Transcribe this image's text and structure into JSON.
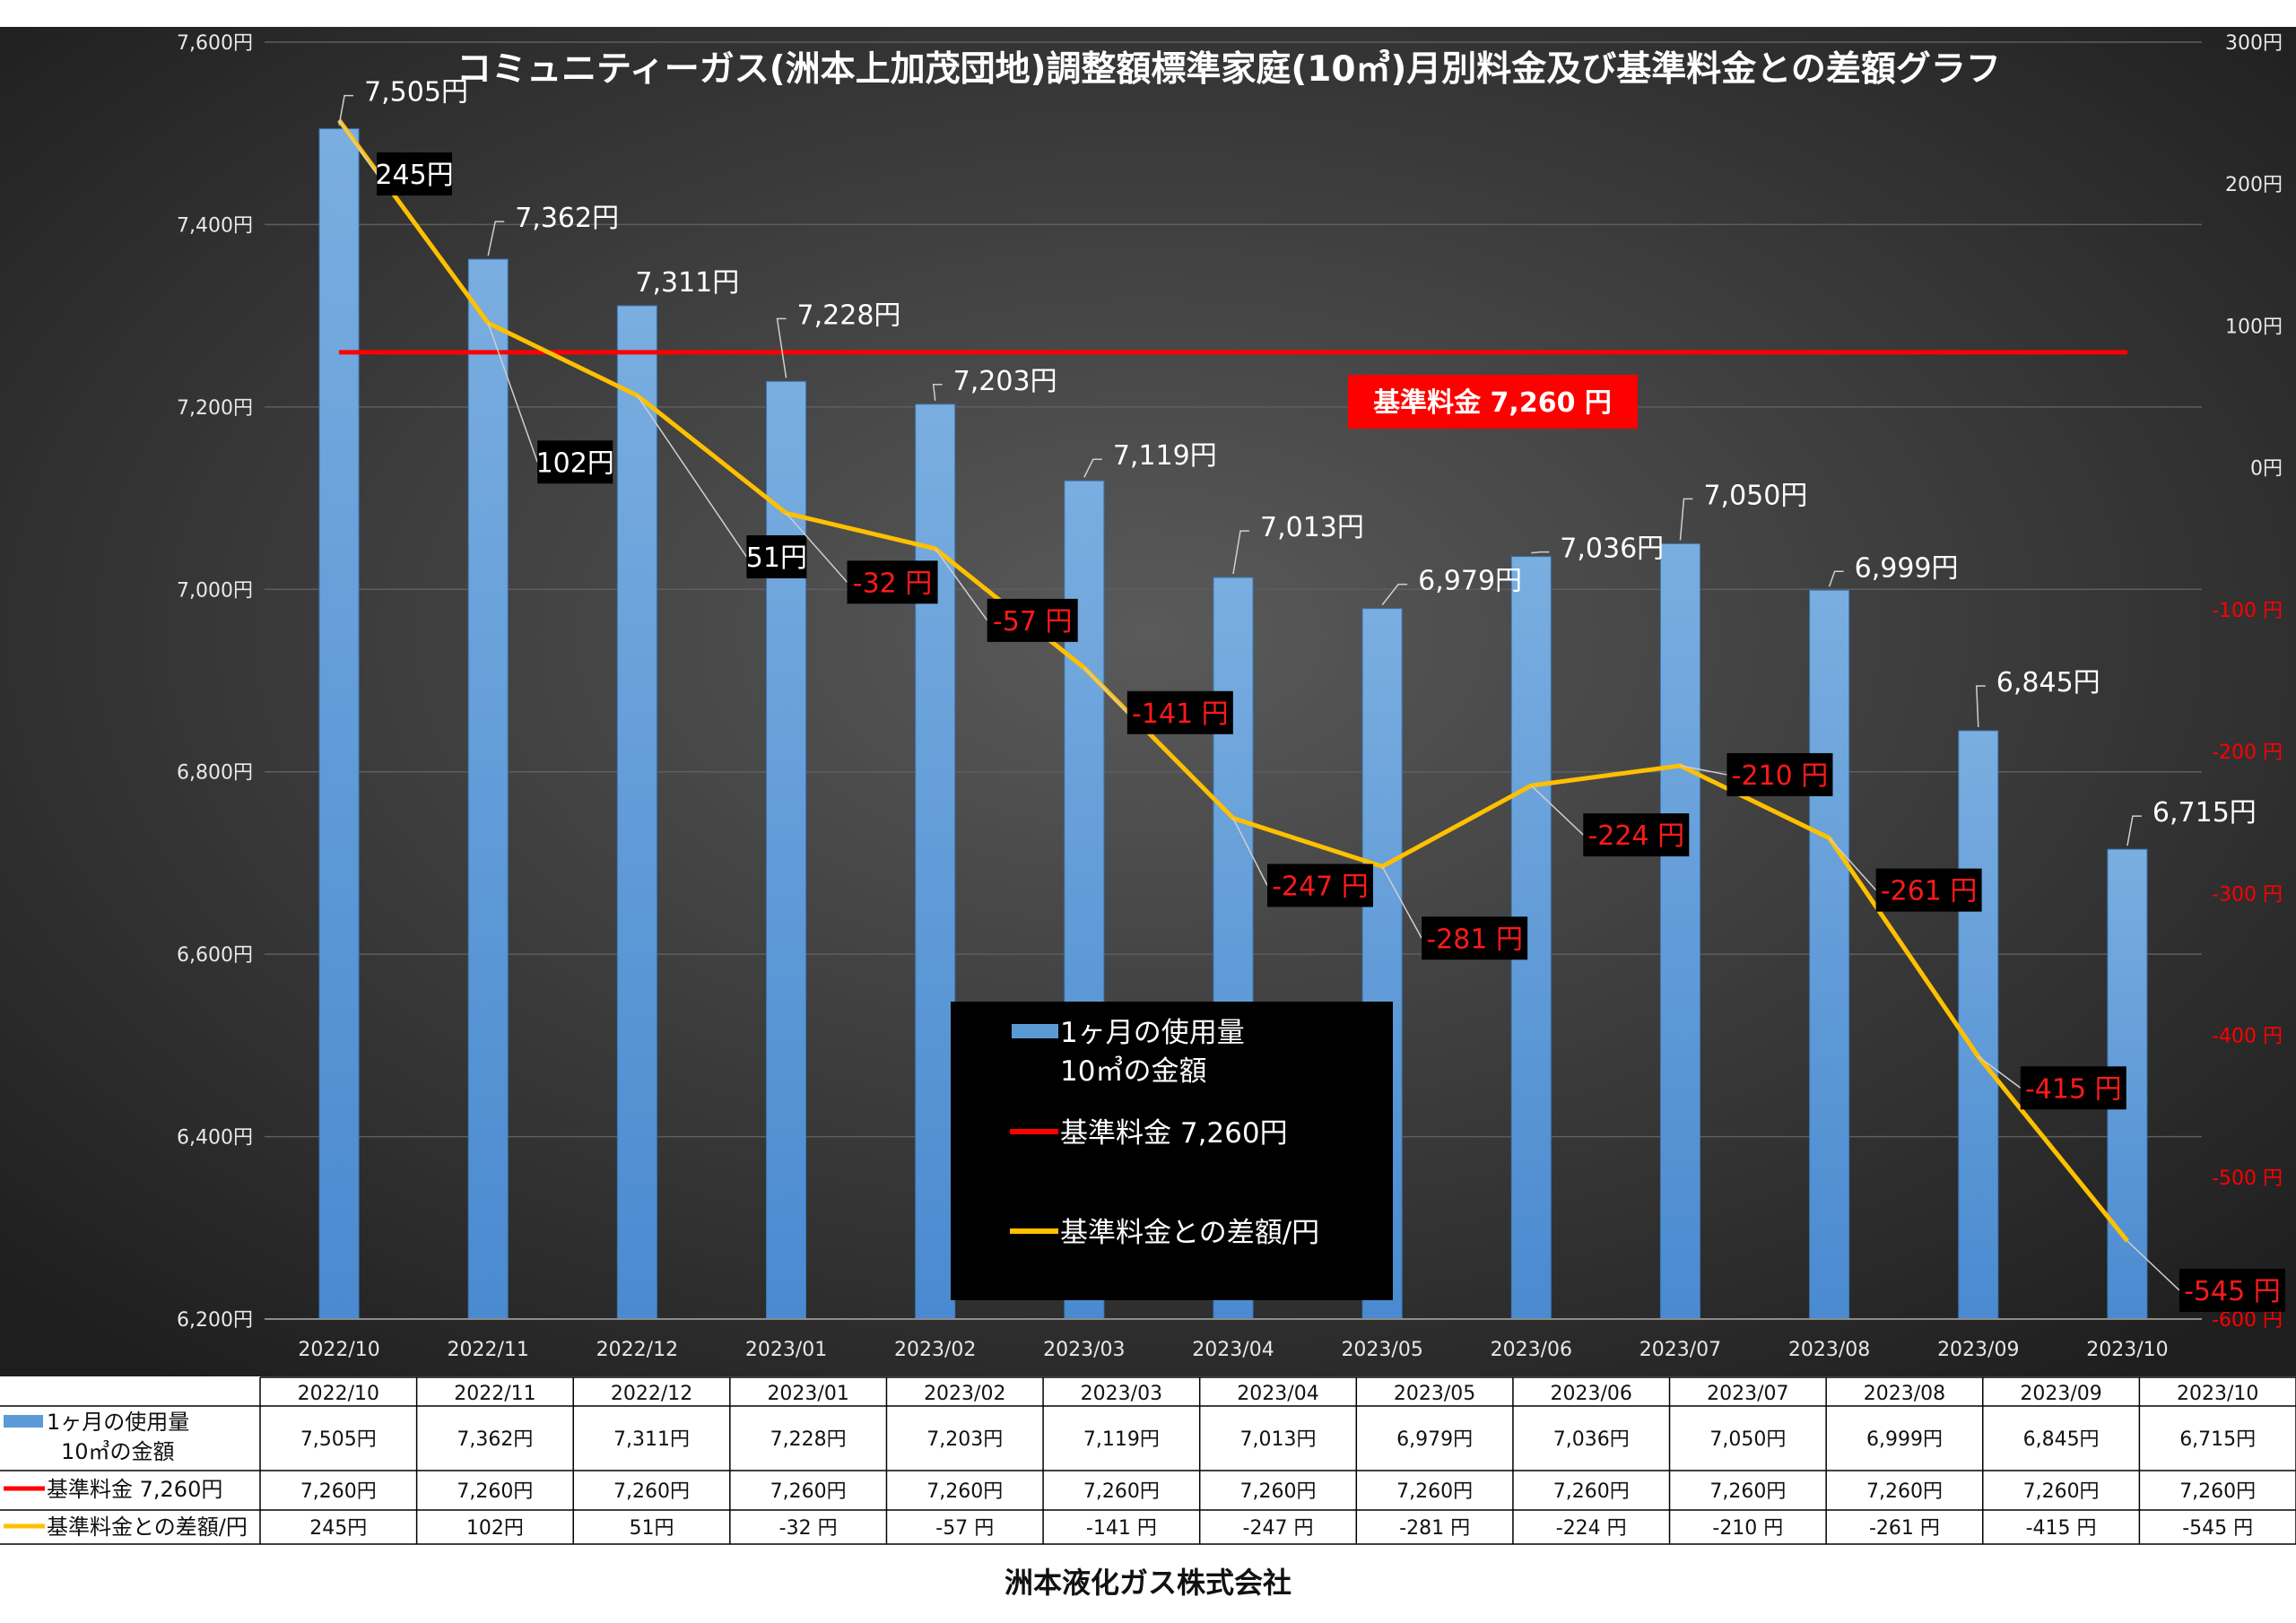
{
  "footer": "洲本液化ガス株式会社",
  "chart_data": {
    "type": "bar",
    "title": "コミュニティーガス(洲本上加茂団地)調整額標準家庭(10㎥)月別料金及び基準料金との差額グラフ",
    "categories": [
      "2022/10",
      "2022/11",
      "2022/12",
      "2023/01",
      "2023/02",
      "2023/03",
      "2023/04",
      "2023/05",
      "2023/06",
      "2023/07",
      "2023/08",
      "2023/09",
      "2023/10"
    ],
    "series": [
      {
        "name": "1ヶ月の使用量 10㎥の金額",
        "chart": "bar",
        "axis": "left",
        "color": "#5b9bd5",
        "values": [
          7505,
          7362,
          7311,
          7228,
          7203,
          7119,
          7013,
          6979,
          7036,
          7050,
          6999,
          6845,
          6715
        ],
        "labels": [
          "7,505円",
          "7,362円",
          "7,311円",
          "7,228円",
          "7,203円",
          "7,119円",
          "7,013円",
          "6,979円",
          "7,036円",
          "7,050円",
          "6,999円",
          "6,845円",
          "6,715円"
        ]
      },
      {
        "name": "基準料金 7,260円",
        "chart": "line",
        "axis": "left",
        "color": "#ff0000",
        "values": [
          7260,
          7260,
          7260,
          7260,
          7260,
          7260,
          7260,
          7260,
          7260,
          7260,
          7260,
          7260,
          7260
        ],
        "labels": [
          "7,260円",
          "7,260円",
          "7,260円",
          "7,260円",
          "7,260円",
          "7,260円",
          "7,260円",
          "7,260円",
          "7,260円",
          "7,260円",
          "7,260円",
          "7,260円",
          "7,260円"
        ]
      },
      {
        "name": "基準料金との差額/円",
        "chart": "line",
        "axis": "right",
        "color": "#ffc000",
        "values": [
          245,
          102,
          51,
          -32,
          -57,
          -141,
          -247,
          -281,
          -224,
          -210,
          -261,
          -415,
          -545
        ],
        "labels": [
          "245円",
          "102円",
          "51円",
          "-32 円",
          "-57 円",
          "-141 円",
          "-247 円",
          "-281 円",
          "-224 円",
          "-210 円",
          "-261 円",
          "-415 円",
          "-545 円"
        ]
      }
    ],
    "y_left": {
      "range": [
        6200,
        7600
      ],
      "ticks": [
        6200,
        6400,
        6600,
        6800,
        7000,
        7200,
        7400,
        7600
      ],
      "tick_labels": [
        "6,200円",
        "6,400円",
        "6,600円",
        "6,800円",
        "7,000円",
        "7,200円",
        "7,400円",
        "7,600円"
      ]
    },
    "y_right": {
      "range": [
        -600,
        300
      ],
      "ticks": [
        -600,
        -500,
        -400,
        -300,
        -200,
        -100,
        0,
        100,
        200,
        300
      ],
      "tick_labels": [
        "-600 円",
        "-500 円",
        "-400 円",
        "-300 円",
        "-200 円",
        "-100 円",
        "0円",
        "100円",
        "200円",
        "300円"
      ],
      "negative_color": "#ff0000"
    },
    "reference_label": "基準料金  7,260  円",
    "legend": {
      "placement": "center-bottom",
      "entries": [
        {
          "line1": "1ヶ月の使用量",
          "line2": "10㎥の金額",
          "color": "#5b9bd5"
        },
        {
          "line1": "基準料金   7,260円",
          "line2": "",
          "color": "#ff0000"
        },
        {
          "line1": "基準料金との差額/円",
          "line2": "",
          "color": "#ffc000"
        }
      ]
    },
    "table_row_labels": [
      {
        "line1": "1ヶ月の使用量",
        "line2": "10㎥の金額",
        "color": "#5b9bd5"
      },
      {
        "line1": "基準料金  7,260円",
        "line2": "",
        "color": "#ff0000"
      },
      {
        "line1": "基準料金との差額/円",
        "line2": "",
        "color": "#ffc000"
      }
    ],
    "grid": true
  }
}
